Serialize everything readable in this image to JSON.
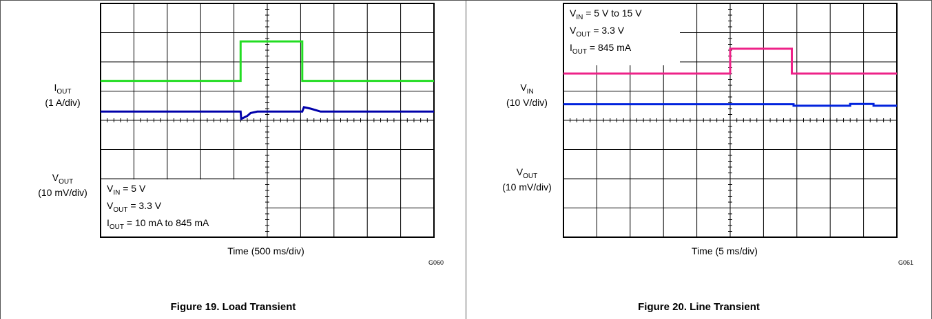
{
  "figures": [
    {
      "caption": "Figure 19. Load Transient",
      "xlabel": "Time (500 ms/div)",
      "code": "G060",
      "ch1": {
        "name": "I",
        "sub": "OUT",
        "scale": "(1 A/div)"
      },
      "ch2": {
        "name": "V",
        "sub": "OUT",
        "scale": "(10 mV/div)"
      },
      "conditions": [
        {
          "main": "V",
          "sub": "IN",
          "rest": " = 5 V"
        },
        {
          "main": "V",
          "sub": "OUT",
          "rest": " = 3.3 V"
        },
        {
          "main": "I",
          "sub": "OUT",
          "rest": " = 10 mA to 845 mA"
        }
      ]
    },
    {
      "caption": "Figure 20. Line Transient",
      "xlabel": "Time (5 ms/div)",
      "code": "G061",
      "ch1": {
        "name": "V",
        "sub": "IN",
        "scale": "(10 V/div)"
      },
      "ch2": {
        "name": "V",
        "sub": "OUT",
        "scale": "(10 mV/div)"
      },
      "conditions": [
        {
          "main": "V",
          "sub": "IN",
          "rest": " = 5 V to 15 V"
        },
        {
          "main": "V",
          "sub": "OUT",
          "rest": " = 3.3 V"
        },
        {
          "main": "I",
          "sub": "OUT",
          "rest": " = 845 mA"
        }
      ]
    }
  ],
  "chart_data": [
    {
      "type": "line",
      "title": "Figure 19. Load Transient",
      "xlabel": "Time (500 ms/div)",
      "x_divisions": 10,
      "y_divisions": 8,
      "grid": true,
      "series": [
        {
          "name": "IOUT",
          "color": "#22dd22",
          "points": [
            [
              0,
              5.35
            ],
            [
              4.2,
              5.35
            ],
            [
              4.2,
              6.7
            ],
            [
              6.05,
              6.7
            ],
            [
              6.05,
              5.35
            ],
            [
              10,
              5.35
            ]
          ]
        },
        {
          "name": "VOUT",
          "color": "#0000aa",
          "points": [
            [
              0,
              4.3
            ],
            [
              4.2,
              4.3
            ],
            [
              4.22,
              4.05
            ],
            [
              4.4,
              4.15
            ],
            [
              4.5,
              4.25
            ],
            [
              4.7,
              4.3
            ],
            [
              6.05,
              4.3
            ],
            [
              6.1,
              4.45
            ],
            [
              6.3,
              4.4
            ],
            [
              6.6,
              4.3
            ],
            [
              10,
              4.3
            ]
          ]
        }
      ]
    },
    {
      "type": "line",
      "title": "Figure 20. Line Transient",
      "xlabel": "Time (5 ms/div)",
      "x_divisions": 10,
      "y_divisions": 8,
      "grid": true,
      "series": [
        {
          "name": "VIN",
          "color": "#ee2288",
          "points": [
            [
              0,
              5.6
            ],
            [
              5,
              5.6
            ],
            [
              5,
              6.45
            ],
            [
              6.85,
              6.45
            ],
            [
              6.85,
              5.6
            ],
            [
              10,
              5.6
            ]
          ]
        },
        {
          "name": "VOUT",
          "color": "#0022dd",
          "points": [
            [
              0,
              4.55
            ],
            [
              6.9,
              4.55
            ],
            [
              6.9,
              4.5
            ],
            [
              8.6,
              4.5
            ],
            [
              8.6,
              4.56
            ],
            [
              9.3,
              4.56
            ],
            [
              9.3,
              4.5
            ],
            [
              10,
              4.5
            ]
          ]
        }
      ]
    }
  ]
}
